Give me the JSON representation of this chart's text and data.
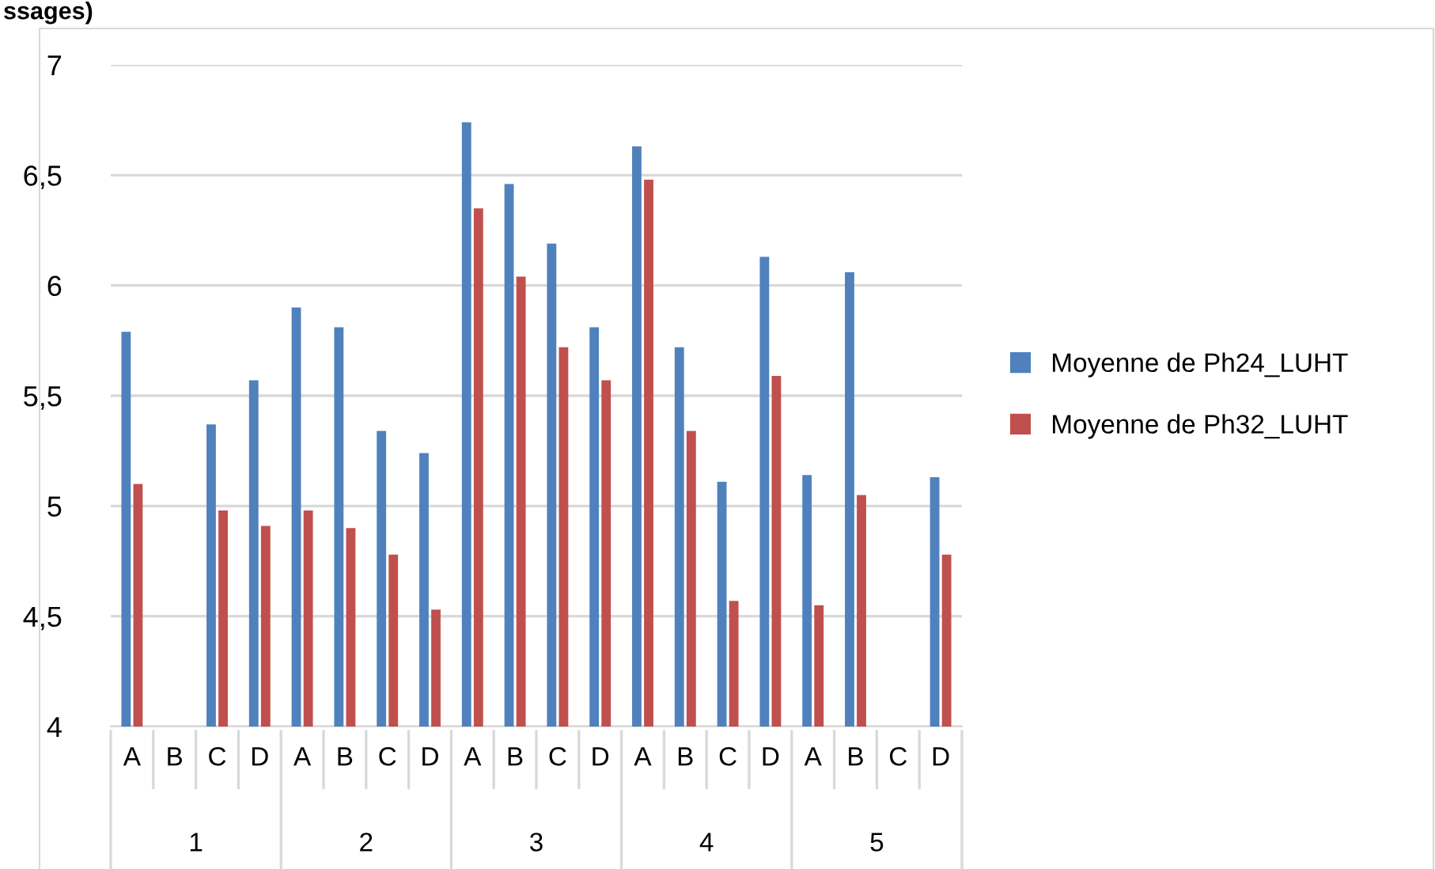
{
  "chart_data": {
    "type": "bar",
    "title": "ssages)",
    "categories": [
      "A",
      "B",
      "C",
      "D",
      "A",
      "B",
      "C",
      "D",
      "A",
      "B",
      "C",
      "D",
      "A",
      "B",
      "C",
      "D",
      "A",
      "B",
      "C",
      "D"
    ],
    "annotations": [
      "1",
      "2",
      "3",
      "4",
      "5"
    ],
    "series": [
      {
        "name": "Moyenne de Ph24_LUHT",
        "color": "#4f81bd",
        "values": [
          5.79,
          null,
          5.37,
          5.57,
          5.9,
          5.81,
          5.34,
          5.24,
          6.74,
          6.46,
          6.19,
          5.81,
          6.63,
          5.72,
          5.11,
          6.13,
          5.14,
          6.06,
          null,
          5.13
        ]
      },
      {
        "name": "Moyenne de Ph32_LUHT",
        "color": "#c0504d",
        "values": [
          5.1,
          null,
          4.98,
          4.91,
          4.98,
          4.9,
          4.78,
          4.53,
          6.35,
          6.04,
          5.72,
          5.57,
          6.48,
          5.34,
          4.57,
          5.59,
          4.55,
          5.05,
          null,
          4.78
        ]
      }
    ],
    "ylim": [
      4,
      7
    ],
    "yticks": [
      4,
      {
        "value": 4.5,
        "label": "4,5"
      },
      5,
      {
        "value": 5.5,
        "label": "5,5"
      },
      6,
      {
        "value": 6.5,
        "label": "6,5"
      },
      7
    ],
    "grid": "y",
    "legend": "right"
  }
}
